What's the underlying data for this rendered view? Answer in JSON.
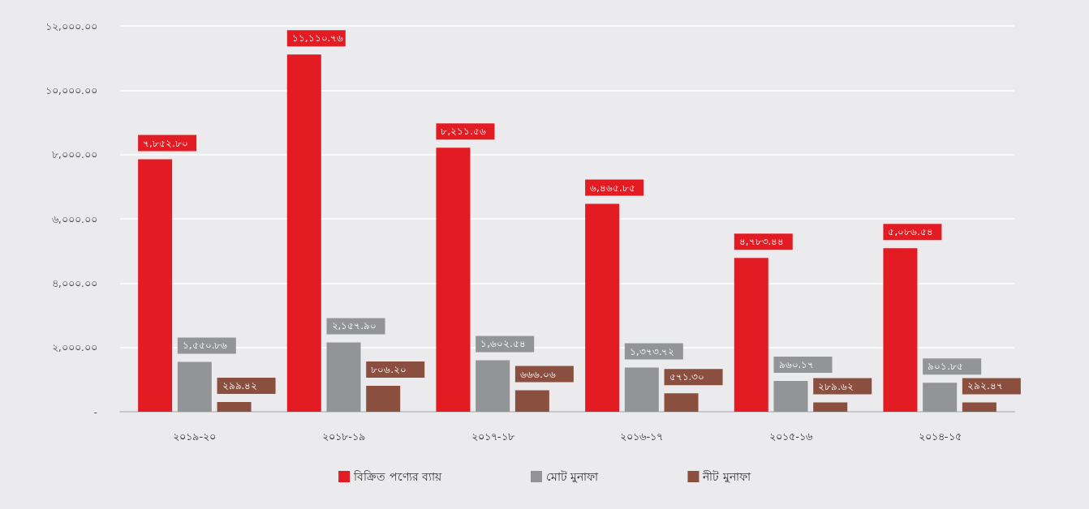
{
  "chart_data": {
    "type": "bar",
    "categories": [
      "২০১৯-২০",
      "২০১৮-১৯",
      "২০১৭-১৮",
      "২০১৬-১৭",
      "২০১৫-১৬",
      "২০১৪-১৫"
    ],
    "series": [
      {
        "name": "বিক্রিত পণ্যের ব্যায়",
        "color": "#e31b23",
        "values": [
          7852.8,
          11110.76,
          8211.56,
          6465.85,
          4783.44,
          5086.54
        ],
        "value_labels": [
          "৭,৮৫২.৮০",
          "১১,১১০.৭৬",
          "৮,২১১.৫৬",
          "৬,৪৬৫.৮৫",
          "৪,৭৮৩.৪৪",
          "৫,০৮৬.৫৪"
        ]
      },
      {
        "name": "মোট মুনাফা",
        "color": "#939496",
        "values": [
          1550.86,
          2157.9,
          1602.54,
          1373.72,
          960.17,
          901.85
        ],
        "value_labels": [
          "১,৫৫০.৮৬",
          "২,১৫৭.৯০",
          "১,৬০২.৫৪",
          "১,৩৭৩.৭২",
          "৯৬০.১৭",
          "৯০১.৮৫"
        ]
      },
      {
        "name": "নীট মুনাফা",
        "color": "#8a4f3e",
        "values": [
          299.42,
          806.2,
          666.06,
          571.3,
          289.62,
          292.47
        ],
        "value_labels": [
          "২৯৯.৪২",
          "৮০৬.২০",
          "৬৬৬.০৬",
          "৫৭১.৩০",
          "২৮৯.৬২",
          "২৯২.৪৭"
        ]
      }
    ],
    "ylim": [
      0,
      12000
    ],
    "yticks": [
      {
        "value": 0,
        "label": "-"
      },
      {
        "value": 2000,
        "label": "২,০০০.০০"
      },
      {
        "value": 4000,
        "label": "৪,০০০.০০"
      },
      {
        "value": 6000,
        "label": "৬,০০০.০০"
      },
      {
        "value": 8000,
        "label": "৮,০০০.০০"
      },
      {
        "value": 10000,
        "label": "১০,০০০.০০"
      },
      {
        "value": 12000,
        "label": "১২,০০০.০০"
      }
    ],
    "grid": "y",
    "legend": "bottom"
  }
}
